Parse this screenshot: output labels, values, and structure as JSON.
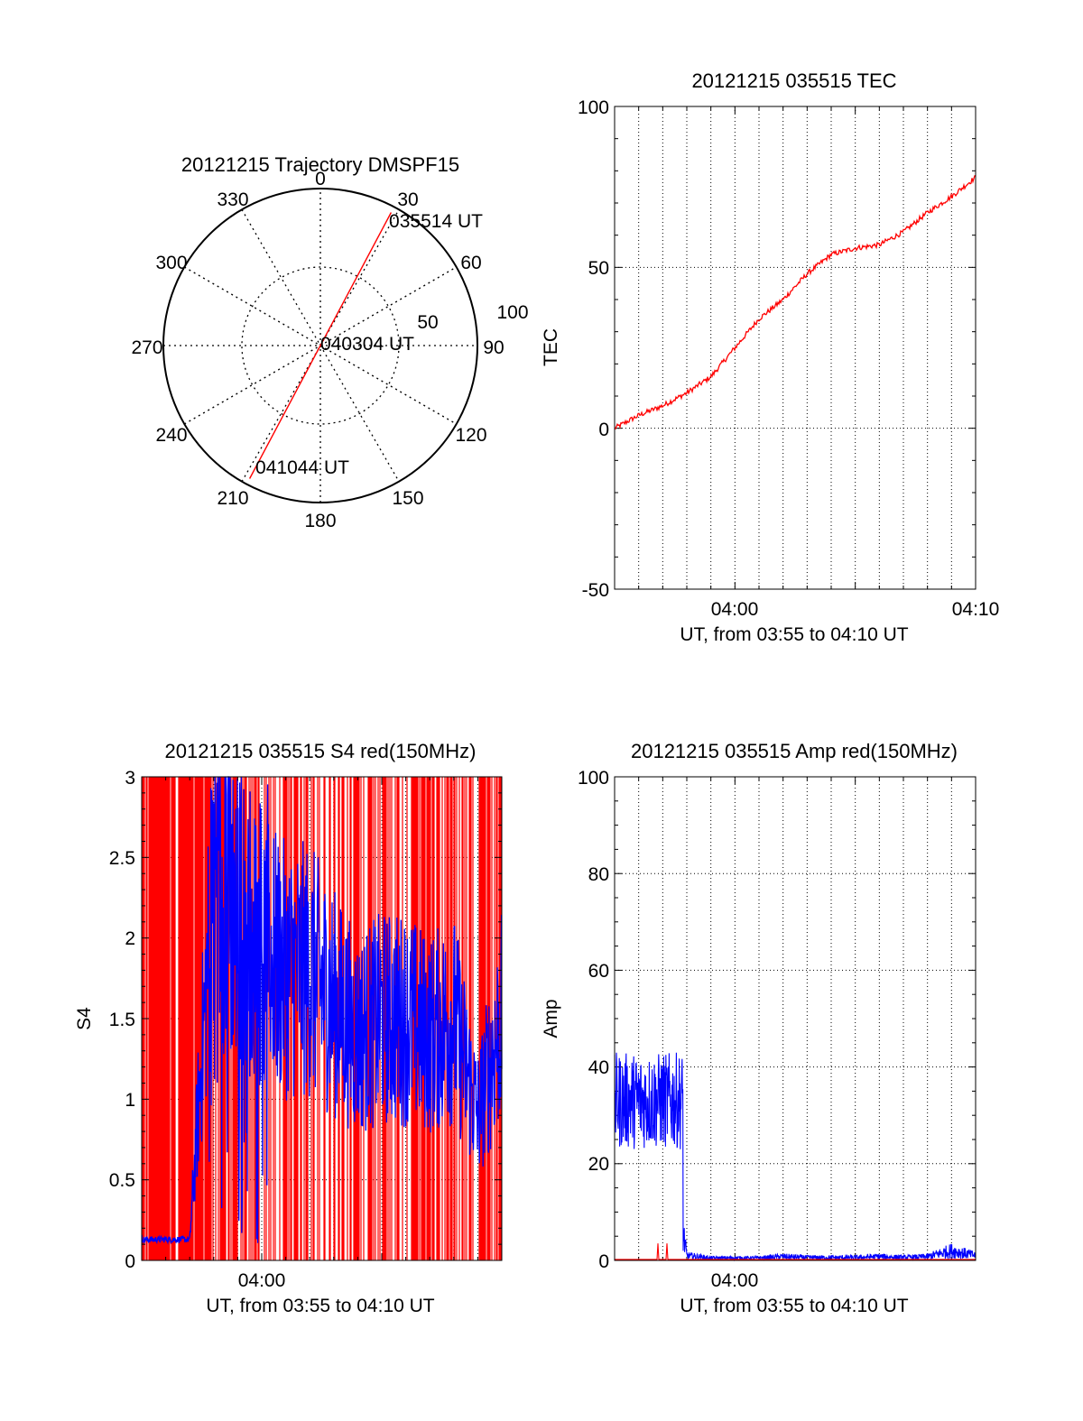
{
  "chart_data": [
    {
      "type": "polar",
      "title": "20121215 Trajectory DMSPF15",
      "angle_labels": [
        "0",
        "30",
        "60",
        "90",
        "120",
        "150",
        "180",
        "210",
        "240",
        "270",
        "300",
        "330"
      ],
      "radius_labels": [
        "50",
        "100"
      ],
      "rlim": [
        0,
        100
      ],
      "grid": true,
      "series": [
        {
          "color": "#ff0000",
          "points": [
            {
              "azimuth": 28,
              "radius": 96
            },
            {
              "azimuth": 0,
              "radius": 0
            },
            {
              "azimuth": 208,
              "radius": 96
            }
          ]
        }
      ],
      "annotations": [
        "035514 UT",
        "040304 UT",
        "041044 UT"
      ]
    },
    {
      "type": "line",
      "title": "20121215 035515 TEC",
      "ylabel": "TEC",
      "xlabel": "UT, from 03:55 to 04:10 UT",
      "xlim": [
        "03:55",
        "04:10"
      ],
      "ylim": [
        -50,
        100
      ],
      "x_ticks": [
        "04:00",
        "04:10"
      ],
      "y_ticks": [
        "-50",
        "0",
        "50",
        "100"
      ],
      "grid": true,
      "series": [
        {
          "color": "#ff0000",
          "x": [
            "03:55",
            "03:56",
            "03:57",
            "03:58",
            "03:59",
            "04:00",
            "04:01",
            "04:02",
            "04:03",
            "04:04",
            "04:05",
            "04:06",
            "04:07",
            "04:08",
            "04:09",
            "04:10"
          ],
          "values": [
            0,
            4,
            7,
            11,
            16,
            25,
            34,
            40,
            48,
            54,
            56,
            57,
            61,
            67,
            72,
            78
          ]
        }
      ]
    },
    {
      "type": "line",
      "title": "20121215 035515 S4 red(150MHz)",
      "ylabel": "S4",
      "xlabel": "UT, from 03:55 to 04:10 UT",
      "xlim": [
        "03:55",
        "04:10"
      ],
      "ylim": [
        0,
        3
      ],
      "x_ticks": [
        "04:00"
      ],
      "y_ticks": [
        "0",
        "0.5",
        "1",
        "1.5",
        "2",
        "2.5",
        "3"
      ],
      "grid": true,
      "series": [
        {
          "color": "#ff0000",
          "description_values": "saturated spikes from 0 to 3 across the full interval",
          "x": [
            "03:55",
            "04:10"
          ],
          "values": [
            0,
            3
          ]
        },
        {
          "color": "#0000ff",
          "x": [
            "03:55",
            "03:56",
            "03:57",
            "03:58",
            "03:59",
            "04:00",
            "04:01",
            "04:02",
            "04:03",
            "04:04",
            "04:05",
            "04:06",
            "04:07",
            "04:08",
            "04:09",
            "04:10"
          ],
          "values": [
            0.13,
            0.13,
            0.13,
            2.4,
            2.2,
            1.9,
            1.8,
            1.8,
            1.6,
            1.4,
            1.5,
            1.5,
            1.4,
            1.5,
            0.9,
            1.5
          ]
        }
      ]
    },
    {
      "type": "line",
      "title": "20121215 035515 Amp red(150MHz)",
      "ylabel": "Amp",
      "xlabel": "UT, from 03:55 to 04:10 UT",
      "xlim": [
        "03:55",
        "04:10"
      ],
      "ylim": [
        0,
        100
      ],
      "x_ticks": [
        "04:00"
      ],
      "y_ticks": [
        "0",
        "20",
        "40",
        "60",
        "80",
        "100"
      ],
      "grid": true,
      "series": [
        {
          "color": "#0000ff",
          "x": [
            "03:55",
            "03:56",
            "03:57",
            "03:58",
            "03:59",
            "04:00",
            "04:01",
            "04:02",
            "04:03",
            "04:04",
            "04:05",
            "04:06",
            "04:07",
            "04:08",
            "04:09",
            "04:10"
          ],
          "values": [
            35,
            33,
            32,
            1,
            0.5,
            0.5,
            0.5,
            0.8,
            0.6,
            0.6,
            0.6,
            0.8,
            0.6,
            0.8,
            2,
            1
          ]
        },
        {
          "color": "#ff0000",
          "x": [
            "03:55",
            "03:56",
            "03:57",
            "03:58",
            "04:10"
          ],
          "values": [
            0.2,
            3.5,
            3.5,
            0.2,
            0.2
          ]
        }
      ]
    }
  ]
}
